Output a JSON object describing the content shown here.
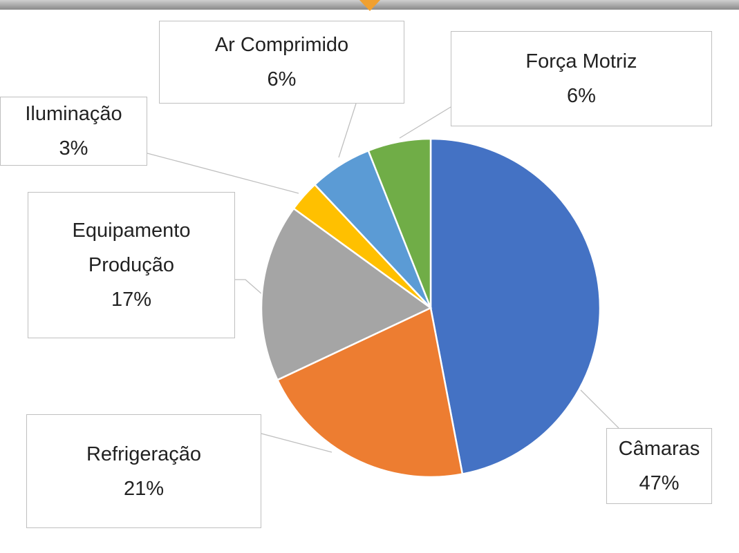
{
  "chart_data": {
    "type": "pie",
    "categories": [
      "Câmaras",
      "Refrigeração",
      "Equipamento Produção",
      "Iluminação",
      "Ar Comprimido",
      "Força Motriz"
    ],
    "values": [
      47,
      21,
      17,
      3,
      6,
      6
    ],
    "value_labels": [
      "47%",
      "21%",
      "17%",
      "3%",
      "6%",
      "6%"
    ],
    "colors": [
      "#4472c4",
      "#ed7d31",
      "#a5a5a5",
      "#ffc000",
      "#5b9bd5",
      "#70ad47"
    ]
  }
}
